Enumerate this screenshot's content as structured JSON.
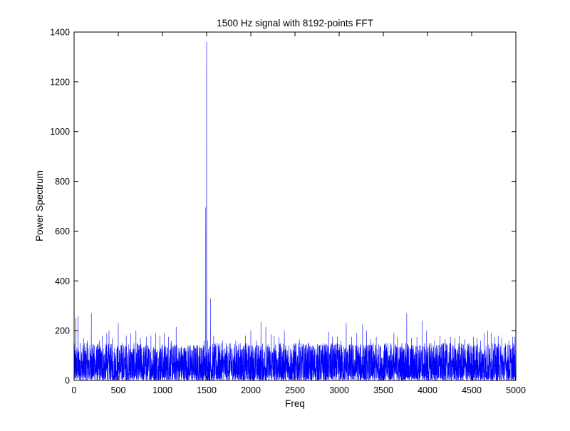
{
  "chart_data": {
    "type": "line",
    "title": "1500 Hz signal with 8192-points FFT",
    "xlabel": "Freq",
    "ylabel": "Power Spectrum",
    "xlim": [
      0,
      5000
    ],
    "ylim": [
      0,
      1400
    ],
    "x_ticks": [
      0,
      500,
      1000,
      1500,
      2000,
      2500,
      3000,
      3500,
      4000,
      4500,
      5000
    ],
    "y_ticks": [
      0,
      200,
      400,
      600,
      800,
      1000,
      1200,
      1400
    ],
    "grid": false,
    "legend": "none",
    "series_color": "#0000ff",
    "noise_floor_range": [
      0,
      150
    ],
    "series": [
      {
        "points": [
          [
            20,
            250
          ],
          [
            45,
            260
          ],
          [
            70,
            150
          ],
          [
            110,
            170
          ],
          [
            150,
            160
          ],
          [
            195,
            270
          ],
          [
            230,
            140
          ],
          [
            285,
            160
          ],
          [
            320,
            180
          ],
          [
            370,
            190
          ],
          [
            395,
            200
          ],
          [
            430,
            170
          ],
          [
            500,
            230
          ],
          [
            545,
            150
          ],
          [
            590,
            180
          ],
          [
            640,
            190
          ],
          [
            700,
            200
          ],
          [
            750,
            170
          ],
          [
            820,
            175
          ],
          [
            870,
            180
          ],
          [
            925,
            190
          ],
          [
            970,
            180
          ],
          [
            1020,
            190
          ],
          [
            1070,
            175
          ],
          [
            1100,
            160
          ],
          [
            1155,
            215
          ],
          [
            1210,
            130
          ],
          [
            1260,
            120
          ],
          [
            1300,
            135
          ],
          [
            1340,
            115
          ],
          [
            1400,
            140
          ],
          [
            1440,
            130
          ],
          [
            1470,
            160
          ],
          [
            1490,
            695
          ],
          [
            1500,
            1360
          ],
          [
            1510,
            160
          ],
          [
            1545,
            330
          ],
          [
            1580,
            180
          ],
          [
            1620,
            150
          ],
          [
            1680,
            160
          ],
          [
            1720,
            130
          ],
          [
            1775,
            130
          ],
          [
            1830,
            160
          ],
          [
            1880,
            150
          ],
          [
            1940,
            180
          ],
          [
            2000,
            200
          ],
          [
            2060,
            160
          ],
          [
            2115,
            235
          ],
          [
            2170,
            215
          ],
          [
            2230,
            185
          ],
          [
            2265,
            180
          ],
          [
            2320,
            175
          ],
          [
            2380,
            200
          ],
          [
            2430,
            140
          ],
          [
            2500,
            150
          ],
          [
            2550,
            165
          ],
          [
            2600,
            130
          ],
          [
            2650,
            150
          ],
          [
            2700,
            120
          ],
          [
            2760,
            135
          ],
          [
            2820,
            150
          ],
          [
            2880,
            195
          ],
          [
            2925,
            175
          ],
          [
            2980,
            175
          ],
          [
            3020,
            160
          ],
          [
            3080,
            230
          ],
          [
            3140,
            175
          ],
          [
            3200,
            190
          ],
          [
            3265,
            225
          ],
          [
            3310,
            200
          ],
          [
            3360,
            165
          ],
          [
            3420,
            175
          ],
          [
            3460,
            130
          ],
          [
            3520,
            150
          ],
          [
            3580,
            150
          ],
          [
            3620,
            190
          ],
          [
            3660,
            175
          ],
          [
            3710,
            150
          ],
          [
            3765,
            270
          ],
          [
            3820,
            170
          ],
          [
            3880,
            175
          ],
          [
            3940,
            240
          ],
          [
            3990,
            200
          ],
          [
            4040,
            150
          ],
          [
            4080,
            160
          ],
          [
            4140,
            180
          ],
          [
            4200,
            165
          ],
          [
            4260,
            175
          ],
          [
            4310,
            170
          ],
          [
            4360,
            180
          ],
          [
            4420,
            165
          ],
          [
            4470,
            150
          ],
          [
            4520,
            175
          ],
          [
            4560,
            170
          ],
          [
            4600,
            160
          ],
          [
            4640,
            190
          ],
          [
            4680,
            200
          ],
          [
            4720,
            190
          ],
          [
            4760,
            175
          ],
          [
            4800,
            180
          ],
          [
            4840,
            170
          ],
          [
            4880,
            150
          ],
          [
            4920,
            160
          ],
          [
            4965,
            175
          ],
          [
            4990,
            175
          ]
        ]
      }
    ]
  }
}
